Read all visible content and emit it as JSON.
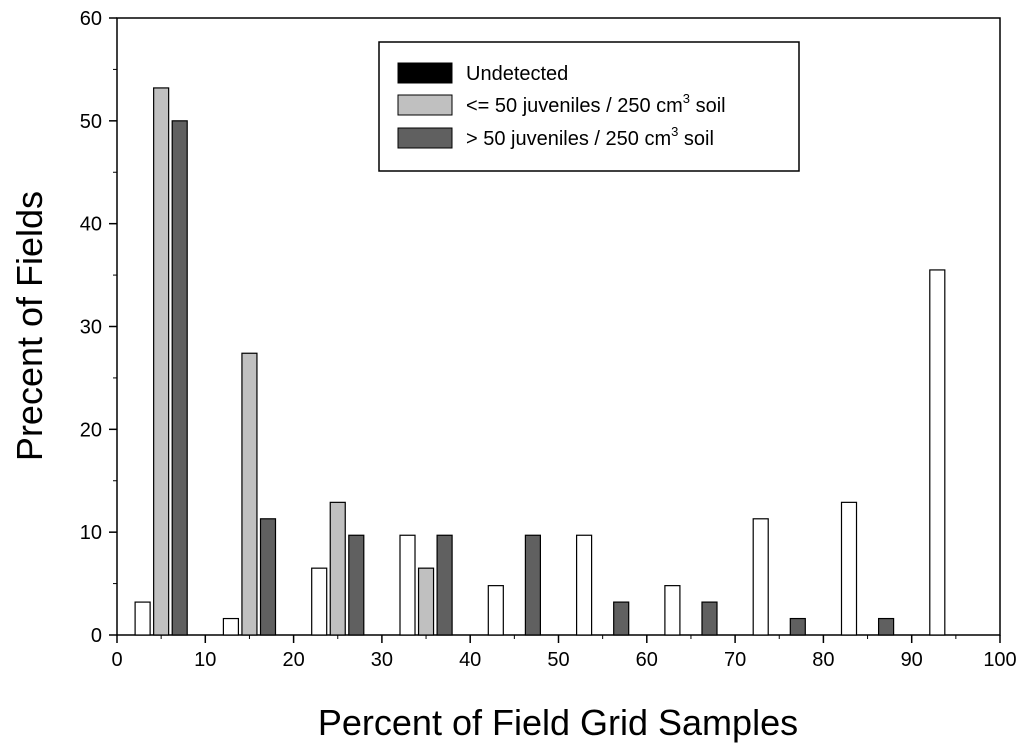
{
  "chart_data": {
    "type": "bar",
    "xlabel": "Percent of Field Grid Samples",
    "ylabel": "Precent of Fields",
    "xlim": [
      0,
      100
    ],
    "ylim": [
      0,
      60
    ],
    "x_ticks": [
      "0",
      "10",
      "20",
      "30",
      "40",
      "50",
      "60",
      "70",
      "80",
      "90",
      "100"
    ],
    "y_ticks": [
      "0",
      "10",
      "20",
      "30",
      "40",
      "50",
      "60"
    ],
    "categories": [
      5,
      15,
      25,
      35,
      45,
      55,
      65,
      75,
      85,
      95
    ],
    "legend_position": "top-center",
    "series": [
      {
        "name": "Undetected",
        "legend_fill": "#000000",
        "fill": "#ffffff",
        "values": [
          3.2,
          1.6,
          6.5,
          9.7,
          4.8,
          9.7,
          4.8,
          11.3,
          12.9,
          35.5
        ]
      },
      {
        "name": "<= 50 juveniles / 250 cm",
        "name_sup": "3",
        "name_suffix": " soil",
        "legend_fill": "#c0c0c0",
        "fill": "#c0c0c0",
        "values": [
          53.2,
          27.4,
          12.9,
          6.5,
          0,
          0,
          0,
          0,
          0,
          0
        ]
      },
      {
        "name": "> 50 juveniles / 250 cm",
        "name_sup": "3",
        "name_suffix": " soil",
        "legend_fill": "#606060",
        "fill": "#606060",
        "values": [
          50.0,
          11.3,
          9.7,
          9.7,
          9.7,
          3.2,
          3.2,
          1.6,
          1.6,
          0
        ]
      }
    ]
  }
}
